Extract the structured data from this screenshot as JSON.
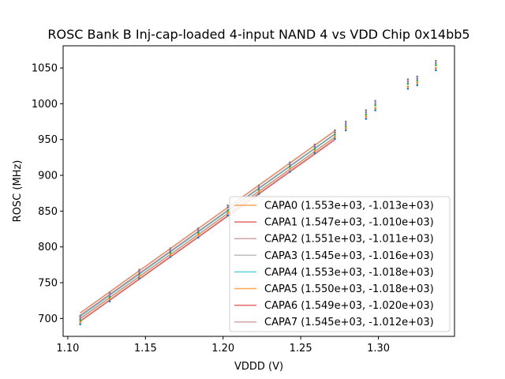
{
  "chart_data": {
    "type": "line",
    "title": "ROSC Bank B Inj-cap-loaded 4-input NAND 4 vs VDD Chip 0x14bb5",
    "xlabel": "VDDD (V)",
    "ylabel": "ROSC (MHz)",
    "xlim": [
      1.097,
      1.349
    ],
    "ylim": [
      675,
      1081
    ],
    "xticks": [
      "1.10",
      "1.15",
      "1.20",
      "1.25",
      "1.30"
    ],
    "xtick_values": [
      1.1,
      1.15,
      1.2,
      1.25,
      1.3
    ],
    "yticks": [
      "700",
      "750",
      "800",
      "850",
      "900",
      "950",
      "1000",
      "1050"
    ],
    "ytick_values": [
      700,
      750,
      800,
      850,
      900,
      950,
      1000,
      1050
    ],
    "fit_x_range": [
      1.108,
      1.272
    ],
    "legend_position": "lower-right",
    "series": [
      {
        "name": "CAPA0 (1.553e+03, -1.013e+03)",
        "slope": 1553,
        "intercept": -1013,
        "color": "#ff7f0e"
      },
      {
        "name": "CAPA1 (1.547e+03, -1.010e+03)",
        "slope": 1547,
        "intercept": -1010,
        "color": "#d62728"
      },
      {
        "name": "CAPA2 (1.551e+03, -1.011e+03)",
        "slope": 1551,
        "intercept": -1011,
        "color": "#c08080"
      },
      {
        "name": "CAPA3 (1.545e+03, -1.016e+03)",
        "slope": 1545,
        "intercept": -1016,
        "color": "#a0a0a0"
      },
      {
        "name": "CAPA4 (1.553e+03, -1.018e+03)",
        "slope": 1553,
        "intercept": -1018,
        "color": "#17becf"
      },
      {
        "name": "CAPA5 (1.550e+03, -1.018e+03)",
        "slope": 1550,
        "intercept": -1018,
        "color": "#ff7f0e"
      },
      {
        "name": "CAPA6 (1.549e+03, -1.020e+03)",
        "slope": 1549,
        "intercept": -1020,
        "color": "#d62728"
      },
      {
        "name": "CAPA7 (1.545e+03, -1.012e+03)",
        "slope": 1545,
        "intercept": -1012,
        "color": "#c08080"
      }
    ],
    "scatter_points": [
      {
        "x": 1.108,
        "y": [
          692,
          695,
          698,
          701,
          704
        ]
      },
      {
        "x": 1.127,
        "y": [
          724,
          727,
          730,
          733,
          736
        ]
      },
      {
        "x": 1.146,
        "y": [
          756,
          759,
          762,
          765,
          768
        ]
      },
      {
        "x": 1.166,
        "y": [
          786,
          789,
          792,
          795,
          798
        ]
      },
      {
        "x": 1.184,
        "y": [
          813,
          817,
          820,
          823,
          826
        ]
      },
      {
        "x": 1.203,
        "y": [
          844,
          848,
          851,
          855,
          858
        ]
      },
      {
        "x": 1.223,
        "y": [
          874,
          877,
          880,
          883,
          886
        ]
      },
      {
        "x": 1.243,
        "y": [
          905,
          909,
          912,
          915,
          918
        ]
      },
      {
        "x": 1.259,
        "y": [
          931,
          934,
          937,
          940,
          943
        ]
      },
      {
        "x": 1.272,
        "y": [
          951,
          954,
          957,
          960,
          963
        ]
      },
      {
        "x": 1.279,
        "y": [
          963,
          966,
          969,
          972,
          975
        ]
      },
      {
        "x": 1.292,
        "y": [
          979,
          982,
          985,
          988,
          991
        ]
      },
      {
        "x": 1.298,
        "y": [
          991,
          994,
          998,
          1001,
          1004
        ]
      },
      {
        "x": 1.319,
        "y": [
          1021,
          1024,
          1028,
          1031,
          1034
        ]
      },
      {
        "x": 1.325,
        "y": [
          1026,
          1029,
          1032,
          1035,
          1038
        ]
      },
      {
        "x": 1.337,
        "y": [
          1047,
          1050,
          1054,
          1057,
          1060
        ]
      }
    ],
    "scatter_colors": [
      "#1f77b4",
      "#ff7f0e",
      "#2ca02c",
      "#9467bd",
      "#7f7f7f"
    ]
  }
}
